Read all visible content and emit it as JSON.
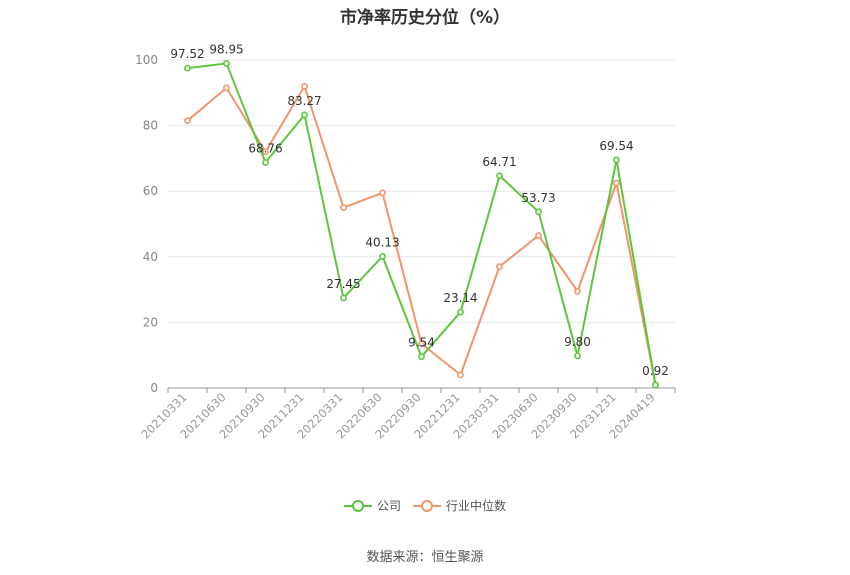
{
  "chart_data": {
    "type": "line",
    "title": "市净率历史分位（%）",
    "categories": [
      "20210331",
      "20210630",
      "20210930",
      "20211231",
      "20220331",
      "20220630",
      "20220930",
      "20221231",
      "20230331",
      "20230630",
      "20230930",
      "20231231",
      "20240419"
    ],
    "ylim": [
      0,
      100
    ],
    "yticks": [
      0,
      20,
      40,
      60,
      80,
      100
    ],
    "grid": true,
    "legend_position": "bottom",
    "series": [
      {
        "name": "公司",
        "color": "#5cc63b",
        "values": [
          97.52,
          98.95,
          68.76,
          83.27,
          27.45,
          40.13,
          9.54,
          23.14,
          64.71,
          53.73,
          9.8,
          69.54,
          0.92
        ],
        "labels": [
          "97.52",
          "98.95",
          "68.76",
          "83.27",
          "27.45",
          "40.13",
          "9.54",
          "23.14",
          "64.71",
          "53.73",
          "9.80",
          "69.54",
          "0.92"
        ]
      },
      {
        "name": "行业中位数",
        "color": "#f0946a",
        "values": [
          81.5,
          91.5,
          72.0,
          92.0,
          55.0,
          59.5,
          13.5,
          4.0,
          37.0,
          46.5,
          29.5,
          62.5,
          1.0
        ]
      }
    ]
  },
  "source": "数据来源：恒生聚源"
}
